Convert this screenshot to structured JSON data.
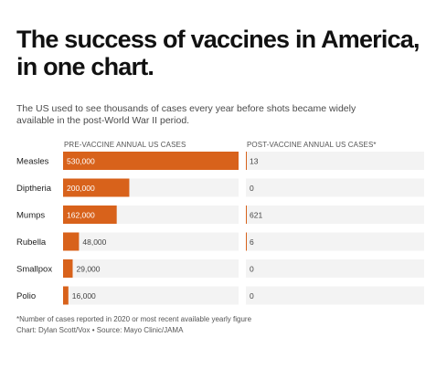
{
  "title_line1": "The success of vaccines in America,",
  "title_line2": "in one chart.",
  "subtitle_line1": "The US used to see thousands of cases every year before shots became widely",
  "subtitle_line2": "available in the post-World War II period.",
  "footnote": "*Number of cases reported in 2020 or most recent available yearly figure",
  "credit": "Chart: Dylan Scott/Vox • Source: Mayo Clinic/JAMA",
  "colors": {
    "bar": "#d8621b",
    "row_background": "#f3f3f3",
    "label_inside": "#ffffff",
    "label_outside": "#444444"
  },
  "chart_data": {
    "type": "bar",
    "categories": [
      "Measles",
      "Diptheria",
      "Mumps",
      "Rubella",
      "Smallpox",
      "Polio"
    ],
    "series": [
      {
        "name": "PRE-VACCINE ANNUAL US CASES",
        "values": [
          530000,
          200000,
          162000,
          48000,
          29000,
          16000
        ],
        "labels": [
          "530,000",
          "200,000",
          "162,000",
          "48,000",
          "29,000",
          "16,000"
        ]
      },
      {
        "name": "POST-VACCINE ANNUAL US CASES*",
        "values": [
          13,
          0,
          621,
          6,
          0,
          0
        ],
        "labels": [
          "13",
          "0",
          "621",
          "6",
          "0",
          "0"
        ]
      }
    ],
    "xlim": [
      0,
      530000
    ],
    "post_xlim": [
      0,
      530000
    ],
    "legend": "column headers above panels"
  }
}
